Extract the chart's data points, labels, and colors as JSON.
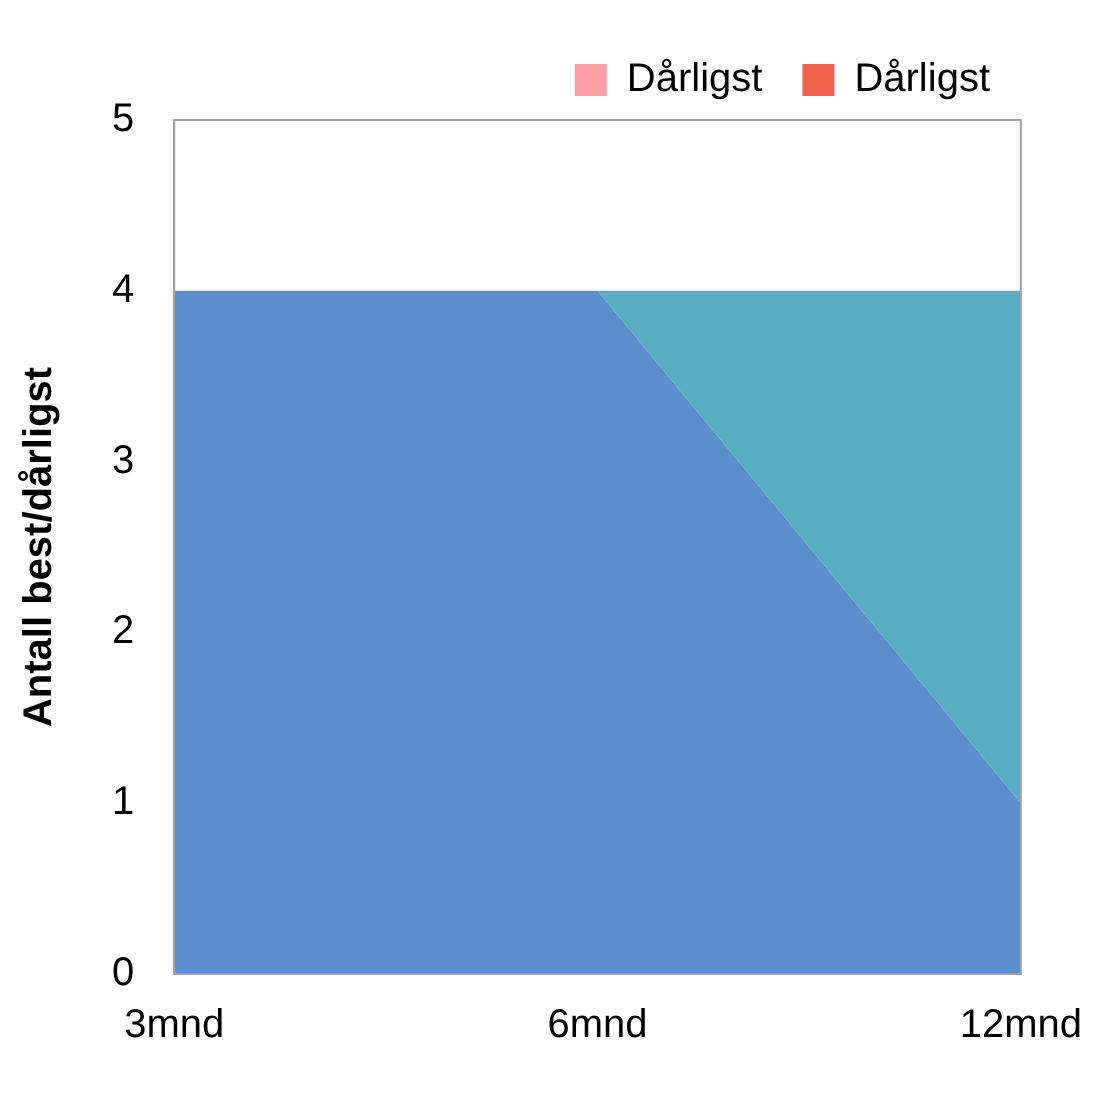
{
  "chart_data": {
    "type": "area",
    "stacked": true,
    "ylabel": "Antall best/dårligst",
    "categories": [
      "3mnd",
      "6mnd",
      "12mnd"
    ],
    "series": [
      {
        "color": "#5b8fcc",
        "values": [
          4,
          4,
          1
        ]
      },
      {
        "color": "#5aaec4",
        "values": [
          0,
          0,
          3
        ]
      },
      {
        "name": "Dårligst",
        "color": "#fc9ea2",
        "values": [
          null,
          null,
          null
        ]
      },
      {
        "name": "Dårligst",
        "color": "#f0604a",
        "values": [
          null,
          null,
          null
        ]
      }
    ],
    "ylim": [
      0,
      5
    ],
    "yticks": [
      0,
      1,
      2,
      3,
      4,
      5
    ],
    "grid": false,
    "legend": "top right",
    "marker": "none"
  }
}
